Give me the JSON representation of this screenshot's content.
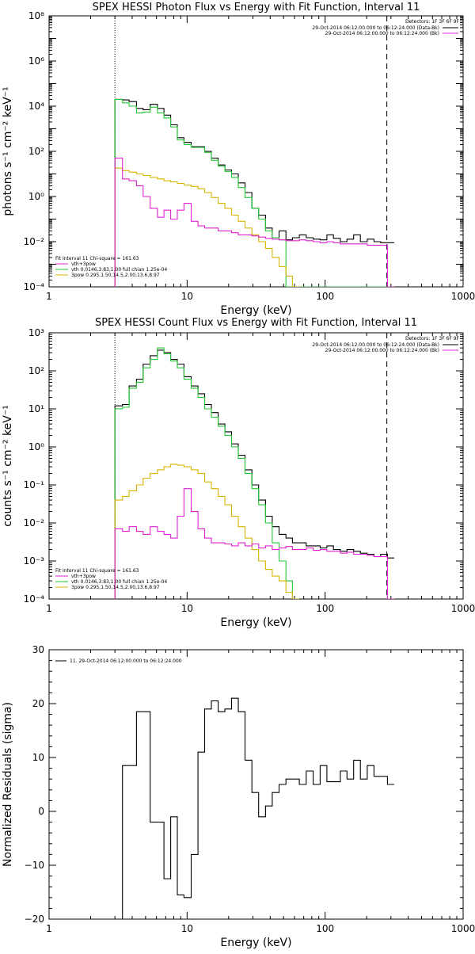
{
  "chart_data": [
    {
      "type": "line",
      "title": "SPEX HESSI Photon Flux vs Energy with Fit Function, Interval 11",
      "xlabel": "Energy (keV)",
      "ylabel": "photons s⁻¹ cm⁻² keV⁻¹",
      "xscale": "log",
      "yscale": "log",
      "xlim": [
        1,
        1000
      ],
      "ylim": [
        0.0001,
        100000000
      ],
      "xticks": [
        {
          "value": 1,
          "label": "1"
        },
        {
          "value": 10,
          "label": "10"
        },
        {
          "value": 100,
          "label": "100"
        },
        {
          "value": 1000,
          "label": "1000"
        }
      ],
      "yticks": [
        {
          "value": 0.0001,
          "label": "10⁻⁴"
        },
        {
          "value": 0.01,
          "label": "10⁻²"
        },
        {
          "value": 1,
          "label": "10⁰"
        },
        {
          "value": 100,
          "label": "10²"
        },
        {
          "value": 10000,
          "label": "10⁴"
        },
        {
          "value": 1000000,
          "label": "10⁶"
        },
        {
          "value": 100000000,
          "label": "10⁸"
        }
      ],
      "vlines": [
        {
          "x": 3,
          "style": "dotted"
        },
        {
          "x": 280,
          "style": "dashed"
        }
      ],
      "legend_topright": {
        "header": "Detectors: 1F 3F 6F 9F",
        "entries": [
          {
            "text": "29-Oct-2014 06:12:00.000 to 06:12:24.000 (Data-Bk)",
            "color": "#000000"
          },
          {
            "text": "29-Oct-2014 06:12:00.000 to 06:12:24.000 (Bk)",
            "color": "#e020d0"
          }
        ]
      },
      "legend_bottomleft": {
        "header": "Fit Interval 11    Chi-square = 161.63",
        "entries": [
          {
            "text": "vth+3pow",
            "color": "#e020d0"
          },
          {
            "text": "vth 0.0146,3.83,1.00  full chian 1.25e-04",
            "color": "#22c832"
          },
          {
            "text": "3pow 0.295,1.50,14.5,2.00,13.6,8.97",
            "color": "#d8b400"
          }
        ]
      },
      "series": [
        {
          "role": "data",
          "color": "#000000",
          "x": [
            3,
            3.4,
            3.8,
            4.3,
            4.8,
            5.4,
            6.1,
            6.8,
            7.6,
            8.5,
            9.5,
            10.7,
            12,
            13.4,
            15,
            16.8,
            18.8,
            21,
            23.5,
            26.3,
            29.5,
            33,
            37,
            41.4,
            46.4,
            52,
            58,
            65,
            73,
            82,
            92,
            103,
            115,
            129,
            144,
            161,
            180,
            202,
            226,
            253,
            283
          ],
          "y": [
            20000,
            19000,
            16000,
            8000,
            7000,
            12000,
            8000,
            4000,
            1500,
            400,
            250,
            160,
            160,
            100,
            50,
            25,
            15,
            10,
            4,
            1.5,
            0.3,
            0.15,
            0.04,
            0.015,
            0.03,
            0.012,
            0.015,
            0.02,
            0.015,
            0.013,
            0.012,
            0.02,
            0.014,
            0.01,
            0.013,
            0.02,
            0.01,
            0.013,
            0.01,
            0.009,
            0.009
          ]
        },
        {
          "role": "vth+3pow",
          "color": "#22c832",
          "x": [
            3,
            3.4,
            3.8,
            4.3,
            4.8,
            5.4,
            6.1,
            6.8,
            7.6,
            8.5,
            9.5,
            10.7,
            12,
            13.4,
            15,
            16.8,
            18.8,
            21,
            23.5,
            26.3,
            29.5,
            33,
            37,
            41.4,
            46.4,
            52,
            58,
            65,
            73,
            82,
            92,
            103,
            115,
            129,
            144,
            161,
            180,
            202,
            226,
            253,
            283
          ],
          "y": [
            20000,
            14000,
            10000,
            5000,
            5500,
            9000,
            5000,
            3000,
            1200,
            320,
            200,
            150,
            150,
            90,
            40,
            22,
            13,
            7,
            2.5,
            0.9,
            0.3,
            0.1,
            0.03,
            0.015,
            0.012,
            0.0001,
            0.0001,
            0.0001,
            0.0001,
            0.0001,
            0.0001,
            0.0001,
            0.0001,
            0.0001,
            0.0001,
            0.0001,
            0.0001,
            0.0001,
            0.0001,
            0.0001,
            0.0001
          ]
        },
        {
          "role": "3pow",
          "color": "#d8b400",
          "x": [
            3,
            3.4,
            3.8,
            4.3,
            4.8,
            5.4,
            6.1,
            6.8,
            7.6,
            8.5,
            9.5,
            10.7,
            12,
            13.4,
            15,
            16.8,
            18.8,
            21,
            23.5,
            26.3,
            29.5,
            33,
            37,
            41.4,
            46.4,
            52,
            58
          ],
          "y": [
            18,
            14,
            12,
            10,
            8.5,
            7,
            6,
            5,
            4.5,
            3.8,
            3.2,
            2.8,
            2.2,
            1.5,
            0.9,
            0.5,
            0.3,
            0.15,
            0.08,
            0.04,
            0.02,
            0.01,
            0.005,
            0.002,
            0.0008,
            0.0003,
            0.0001
          ]
        },
        {
          "role": "background",
          "color": "#e020d0",
          "x": [
            3,
            3.4,
            3.8,
            4.3,
            4.8,
            5.4,
            6.1,
            6.8,
            7.6,
            8.5,
            9.5,
            10.7,
            12,
            13.4,
            15,
            16.8,
            18.8,
            21,
            23.5,
            26.3,
            29.5,
            33,
            37,
            41.4,
            46.4,
            52,
            58,
            65,
            73,
            82,
            92,
            103,
            115,
            129,
            144,
            161,
            180,
            202,
            226,
            253,
            283
          ],
          "y": [
            50,
            6,
            5,
            3,
            1,
            0.3,
            0.12,
            0.25,
            0.1,
            0.25,
            0.5,
            0.08,
            0.05,
            0.04,
            0.04,
            0.03,
            0.03,
            0.025,
            0.02,
            0.02,
            0.018,
            0.016,
            0.014,
            0.013,
            0.012,
            0.011,
            0.011,
            0.012,
            0.011,
            0.01,
            0.009,
            0.01,
            0.009,
            0.008,
            0.008,
            0.008,
            0.008,
            0.007,
            0.007,
            0.007,
            0.0001
          ]
        }
      ]
    },
    {
      "type": "line",
      "title": "SPEX HESSI Count Flux vs Energy with Fit Function, Interval 11",
      "xlabel": "Energy (keV)",
      "ylabel": "counts s⁻¹ cm⁻² keV⁻¹",
      "xscale": "log",
      "yscale": "log",
      "xlim": [
        1,
        1000
      ],
      "ylim": [
        0.0001,
        1000
      ],
      "xticks": [
        {
          "value": 1,
          "label": "1"
        },
        {
          "value": 10,
          "label": "10"
        },
        {
          "value": 100,
          "label": "100"
        },
        {
          "value": 1000,
          "label": "1000"
        }
      ],
      "yticks": [
        {
          "value": 0.0001,
          "label": "10⁻⁴"
        },
        {
          "value": 0.001,
          "label": "10⁻³"
        },
        {
          "value": 0.01,
          "label": "10⁻²"
        },
        {
          "value": 0.1,
          "label": "10⁻¹"
        },
        {
          "value": 1,
          "label": "10⁰"
        },
        {
          "value": 10,
          "label": "10¹"
        },
        {
          "value": 100,
          "label": "10²"
        },
        {
          "value": 1000,
          "label": "10³"
        }
      ],
      "vlines": [
        {
          "x": 3,
          "style": "dotted"
        },
        {
          "x": 280,
          "style": "dashed"
        }
      ],
      "legend_topright": {
        "header": "Detectors: 1F 3F 6F 9F",
        "entries": [
          {
            "text": "29-Oct-2014 06:12:00.000 to 06:12:24.000 (Data-Bk)",
            "color": "#000000"
          },
          {
            "text": "29-Oct-2014 06:12:00.000 to 06:12:24.000 (Bk)",
            "color": "#e020d0"
          }
        ]
      },
      "legend_bottomleft": {
        "header": "Fit Interval 11    Chi-square = 161.63",
        "entries": [
          {
            "text": "vth+3pow",
            "color": "#e020d0"
          },
          {
            "text": "vth 0.0146,3.83,1.00  full chian 1.25e-04",
            "color": "#22c832"
          },
          {
            "text": "3pow 0.295,1.50,14.5,2.00,13.6,8.97",
            "color": "#d8b400"
          }
        ]
      },
      "series": [
        {
          "role": "data",
          "color": "#000000",
          "x": [
            3,
            3.4,
            3.8,
            4.3,
            4.8,
            5.4,
            6.1,
            6.8,
            7.6,
            8.5,
            9.5,
            10.7,
            12,
            13.4,
            15,
            16.8,
            18.8,
            21,
            23.5,
            26.3,
            29.5,
            33,
            37,
            41.4,
            46.4,
            52,
            58,
            65,
            73,
            82,
            92,
            103,
            115,
            129,
            144,
            161,
            180,
            202,
            226,
            253,
            283
          ],
          "y": [
            12,
            13,
            40,
            60,
            150,
            250,
            350,
            300,
            200,
            150,
            70,
            40,
            25,
            13,
            8,
            4,
            2.5,
            1.2,
            0.6,
            0.25,
            0.1,
            0.04,
            0.015,
            0.008,
            0.005,
            0.004,
            0.003,
            0.003,
            0.0025,
            0.0025,
            0.0022,
            0.0025,
            0.002,
            0.0018,
            0.002,
            0.0018,
            0.0016,
            0.0015,
            0.0013,
            0.0015,
            0.0012
          ]
        },
        {
          "role": "vth+3pow",
          "color": "#22c832",
          "x": [
            3,
            3.4,
            3.8,
            4.3,
            4.8,
            5.4,
            6.1,
            6.8,
            7.6,
            8.5,
            9.5,
            10.7,
            12,
            13.4,
            15,
            16.8,
            18.8,
            21,
            23.5,
            26.3,
            29.5,
            33,
            37,
            41.4,
            46.4,
            52,
            58
          ],
          "y": [
            10,
            11,
            35,
            50,
            120,
            200,
            400,
            280,
            180,
            120,
            60,
            35,
            20,
            10,
            6,
            3.5,
            2,
            1,
            0.5,
            0.2,
            0.08,
            0.03,
            0.01,
            0.003,
            0.001,
            0.0003,
            0.0001
          ]
        },
        {
          "role": "3pow",
          "color": "#d8b400",
          "x": [
            3,
            3.4,
            3.8,
            4.3,
            4.8,
            5.4,
            6.1,
            6.8,
            7.6,
            8.5,
            9.5,
            10.7,
            12,
            13.4,
            15,
            16.8,
            18.8,
            21,
            23.5,
            26.3,
            29.5,
            33,
            37,
            41.4,
            46.4,
            52,
            58
          ],
          "y": [
            0.04,
            0.05,
            0.07,
            0.1,
            0.15,
            0.2,
            0.25,
            0.3,
            0.35,
            0.33,
            0.3,
            0.25,
            0.2,
            0.12,
            0.08,
            0.05,
            0.03,
            0.015,
            0.008,
            0.004,
            0.002,
            0.001,
            0.0006,
            0.0004,
            0.0003,
            0.00015,
            0.0001
          ]
        },
        {
          "role": "background",
          "color": "#e020d0",
          "x": [
            3,
            3.4,
            3.8,
            4.3,
            4.8,
            5.4,
            6.1,
            6.8,
            7.6,
            8.5,
            9.5,
            10.7,
            12,
            13.4,
            15,
            16.8,
            18.8,
            21,
            23.5,
            26.3,
            29.5,
            33,
            37,
            41.4,
            46.4,
            52,
            58,
            65,
            73,
            82,
            92,
            103,
            115,
            129,
            144,
            161,
            180,
            202,
            226,
            253,
            283
          ],
          "y": [
            0.007,
            0.006,
            0.008,
            0.006,
            0.005,
            0.008,
            0.006,
            0.005,
            0.004,
            0.015,
            0.08,
            0.02,
            0.007,
            0.004,
            0.003,
            0.003,
            0.0028,
            0.0025,
            0.003,
            0.0025,
            0.0028,
            0.0022,
            0.0025,
            0.002,
            0.0022,
            0.0024,
            0.002,
            0.002,
            0.0022,
            0.0019,
            0.002,
            0.0018,
            0.0018,
            0.0016,
            0.0017,
            0.0015,
            0.0015,
            0.0014,
            0.0013,
            0.0013,
            0.0001
          ]
        }
      ]
    },
    {
      "type": "line",
      "title": "",
      "xlabel": "Energy (keV)",
      "ylabel": "Normalized Residuals (sigma)",
      "xscale": "log",
      "yscale": "linear",
      "xlim": [
        1,
        1000
      ],
      "ylim": [
        -20,
        30
      ],
      "xticks": [
        {
          "value": 1,
          "label": "1"
        },
        {
          "value": 10,
          "label": "10"
        },
        {
          "value": 100,
          "label": "100"
        },
        {
          "value": 1000,
          "label": "1000"
        }
      ],
      "yticks": [
        {
          "value": -20,
          "label": "−20"
        },
        {
          "value": -10,
          "label": "−10"
        },
        {
          "value": 0,
          "label": "0"
        },
        {
          "value": 10,
          "label": "10"
        },
        {
          "value": 20,
          "label": "20"
        },
        {
          "value": 30,
          "label": "30"
        }
      ],
      "legend_topleft": {
        "entries": [
          {
            "text": "11. 29-Oct-2014 06:12:00.000 to 06:12:24.000",
            "color": "#000000"
          }
        ]
      },
      "series": [
        {
          "role": "residuals",
          "color": "#000000",
          "x": [
            3,
            3.4,
            3.8,
            4.3,
            4.8,
            5.4,
            6.1,
            6.8,
            7.6,
            8.5,
            9.5,
            10.7,
            12,
            13.4,
            15,
            16.8,
            18.8,
            21,
            23.5,
            26.3,
            29.5,
            33,
            37,
            41.4,
            46.4,
            52,
            58,
            65,
            73,
            82,
            92,
            103,
            115,
            129,
            144,
            161,
            180,
            202,
            226,
            253,
            283
          ],
          "y": [
            -20,
            8.5,
            8.5,
            18.5,
            18.5,
            -2,
            -2,
            -12.5,
            -1,
            -15.5,
            -16,
            -8,
            11,
            19,
            20.5,
            18.5,
            19,
            21,
            18.5,
            9.5,
            3.5,
            -1,
            1,
            3.5,
            5,
            6,
            6,
            5,
            7.5,
            5,
            8.5,
            5.5,
            5.5,
            7.5,
            6,
            9.5,
            6,
            8.5,
            6.5,
            6.5,
            5
          ]
        }
      ]
    }
  ]
}
